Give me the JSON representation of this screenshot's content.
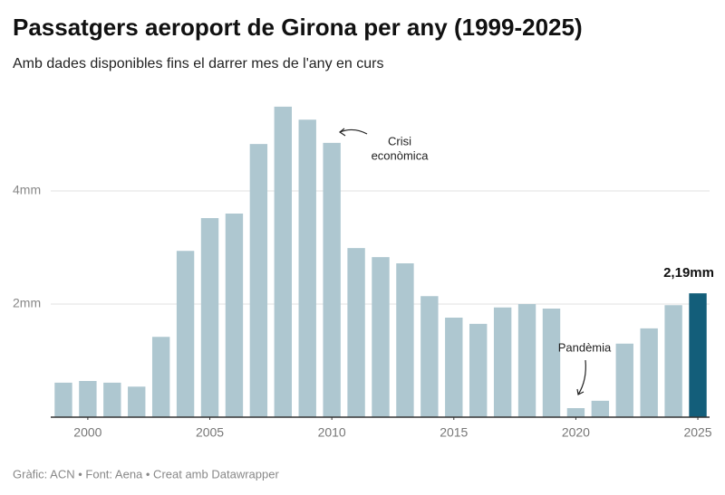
{
  "chart_data": {
    "type": "bar",
    "title": "Passatgers aeroport de Girona per any (1999-2025)",
    "subtitle": "Amb dades disponibles fins el darrer mes de l'any en curs",
    "footer": "Gràfic: ACN • Font: Aena • Creat amb Datawrapper",
    "x": [
      1999,
      2000,
      2001,
      2002,
      2003,
      2004,
      2005,
      2006,
      2007,
      2008,
      2009,
      2010,
      2011,
      2012,
      2013,
      2014,
      2015,
      2016,
      2017,
      2018,
      2019,
      2020,
      2021,
      2022,
      2023,
      2024,
      2025
    ],
    "values": [
      0.61,
      0.64,
      0.61,
      0.54,
      1.42,
      2.94,
      3.52,
      3.6,
      4.83,
      5.49,
      5.26,
      4.85,
      2.99,
      2.83,
      2.72,
      2.14,
      1.76,
      1.65,
      1.94,
      2.0,
      1.92,
      0.16,
      0.29,
      1.3,
      1.57,
      1.98,
      2.19
    ],
    "value_labels": [
      null,
      null,
      null,
      null,
      null,
      null,
      null,
      null,
      null,
      null,
      null,
      null,
      null,
      null,
      null,
      null,
      null,
      null,
      null,
      null,
      null,
      null,
      null,
      null,
      null,
      null,
      "2,19mm"
    ],
    "colors": [
      "#aec7d0",
      "#aec7d0",
      "#aec7d0",
      "#aec7d0",
      "#aec7d0",
      "#aec7d0",
      "#aec7d0",
      "#aec7d0",
      "#aec7d0",
      "#aec7d0",
      "#aec7d0",
      "#aec7d0",
      "#aec7d0",
      "#aec7d0",
      "#aec7d0",
      "#aec7d0",
      "#aec7d0",
      "#aec7d0",
      "#aec7d0",
      "#aec7d0",
      "#aec7d0",
      "#aec7d0",
      "#aec7d0",
      "#aec7d0",
      "#aec7d0",
      "#aec7d0",
      "#135e7a"
    ],
    "xlim": [
      1998.5,
      2025.5
    ],
    "xticks": [
      2000,
      2005,
      2010,
      2015,
      2020,
      2025
    ],
    "ylim": [
      0,
      5.6
    ],
    "yticks": [
      {
        "value": 2,
        "label": "2mm"
      },
      {
        "value": 4,
        "label": "4mm"
      }
    ],
    "grid": true,
    "annotations": [
      {
        "lines": [
          "Crisi",
          "econòmica"
        ]
      },
      {
        "lines": [
          "Pandèmia"
        ]
      }
    ]
  }
}
